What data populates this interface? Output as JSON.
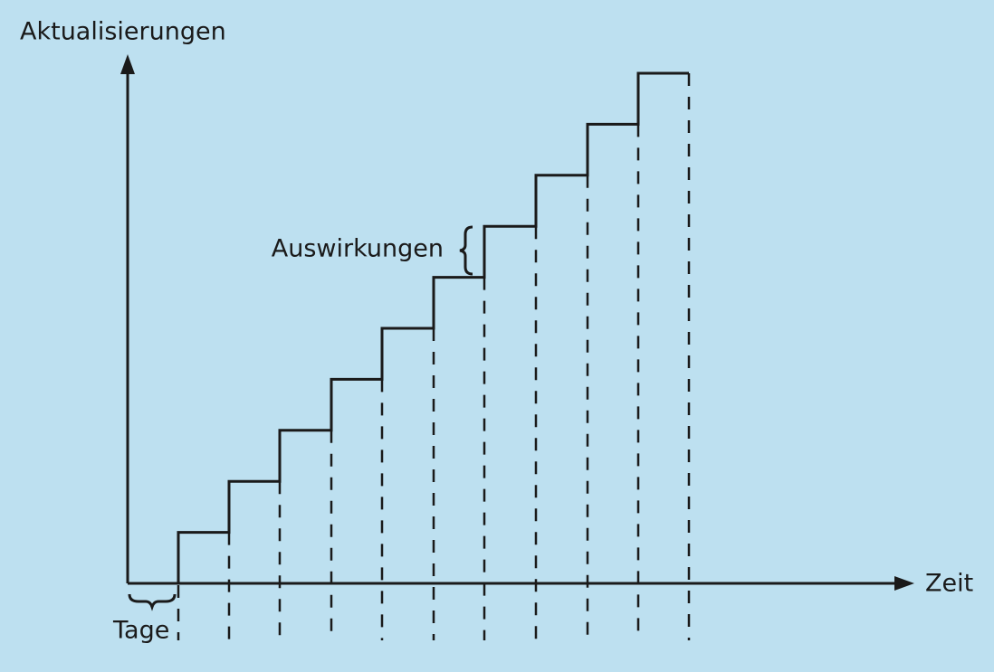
{
  "y_axis_label": "Aktualisierungen",
  "x_axis_label": "Zeit",
  "annotation": "Auswirkungen",
  "interval_label": "Tage"
}
